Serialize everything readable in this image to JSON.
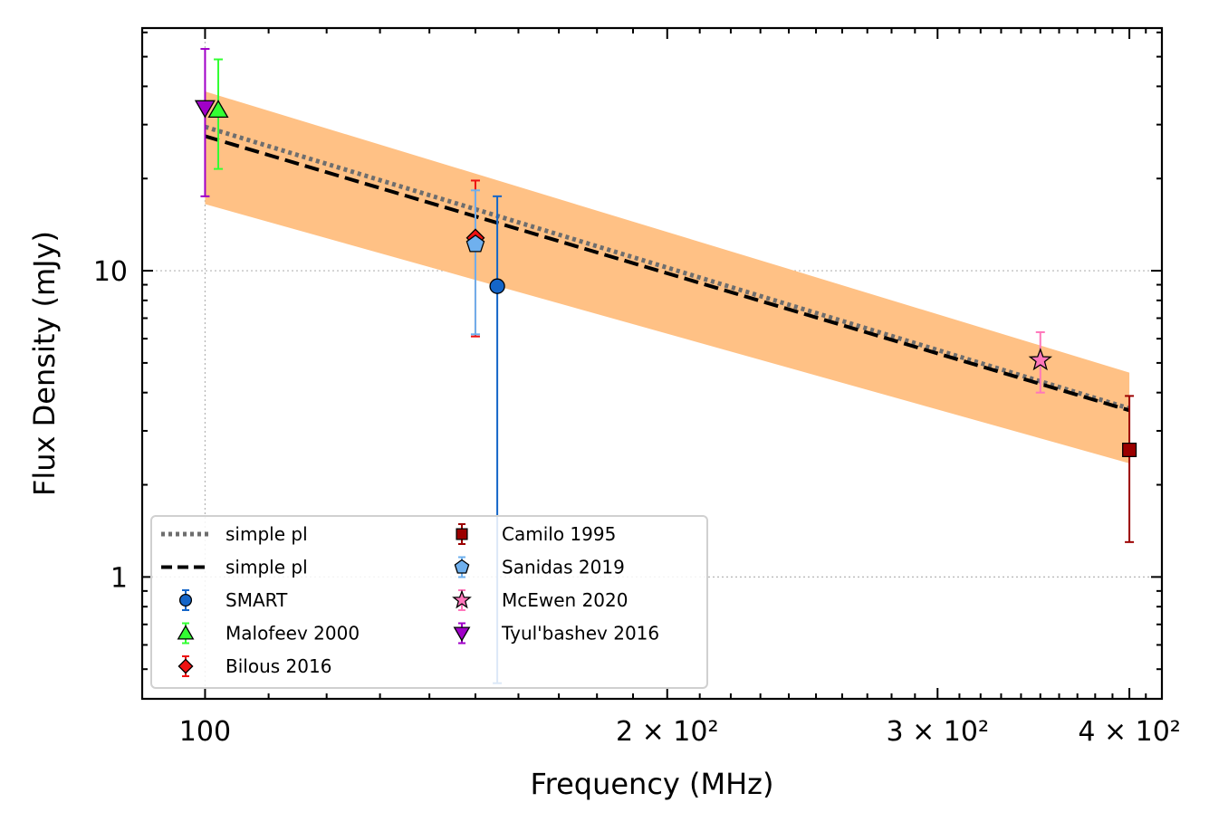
{
  "chart_data": {
    "type": "scatter",
    "xlabel": "Frequency (MHz)",
    "ylabel": "Flux Density (mJy)",
    "x_scale": "log",
    "y_scale": "log",
    "xlim": [
      91,
      420
    ],
    "ylim": [
      0.4,
      62
    ],
    "grid": true,
    "legend_position": "lower-left",
    "x_ticks": [
      {
        "value": 100,
        "label": "100"
      },
      {
        "value": 200,
        "label": "2 × 10²"
      },
      {
        "value": 300,
        "label": "3 × 10²"
      },
      {
        "value": 400,
        "label": "4 × 10²"
      }
    ],
    "y_ticks": [
      {
        "value": 1,
        "label": "1"
      },
      {
        "value": 10,
        "label": "10"
      }
    ],
    "fits": [
      {
        "name": "simple pl",
        "style": "dotted",
        "color": "#6e6e6e",
        "points": [
          [
            100,
            29.5
          ],
          [
            400,
            3.55
          ]
        ]
      },
      {
        "name": "simple pl",
        "style": "dashed",
        "color": "#000000",
        "points": [
          [
            100,
            27.5
          ],
          [
            400,
            3.5
          ]
        ]
      }
    ],
    "uncertainty_band": {
      "color": "#ffc185",
      "x": [
        100,
        400
      ],
      "upper": [
        38.5,
        4.65
      ],
      "lower": [
        16.5,
        2.35
      ]
    },
    "series": [
      {
        "name": "SMART",
        "marker": "circle",
        "color": "#1465c8",
        "errcolor": "#1465c8",
        "points": [
          {
            "x": 155,
            "y": 8.9,
            "ylo": 0.45,
            "yhi": 17.5
          }
        ]
      },
      {
        "name": "Malofeev 2000",
        "marker": "triangle-up",
        "color": "#33ff33",
        "errcolor": "#33ff33",
        "points": [
          {
            "x": 102,
            "y": 33.5,
            "ylo": 21.5,
            "yhi": 49
          }
        ]
      },
      {
        "name": "Bilous 2016",
        "marker": "diamond",
        "color": "#ee1111",
        "errcolor": "#ee1111",
        "points": [
          {
            "x": 150,
            "y": 12.8,
            "ylo": 6.1,
            "yhi": 19.7
          }
        ]
      },
      {
        "name": "Camilo 1995",
        "marker": "square",
        "color": "#9b0000",
        "errcolor": "#9b0000",
        "points": [
          {
            "x": 400,
            "y": 2.6,
            "ylo": 1.3,
            "yhi": 3.9
          }
        ]
      },
      {
        "name": "Sanidas 2019",
        "marker": "pentagon",
        "color": "#6fb0ee",
        "errcolor": "#6fb0ee",
        "points": [
          {
            "x": 150,
            "y": 12.2,
            "ylo": 6.2,
            "yhi": 18.3
          }
        ]
      },
      {
        "name": "McEwen 2020",
        "marker": "star",
        "color": "#ff77bb",
        "errcolor": "#ff77bb",
        "points": [
          {
            "x": 350,
            "y": 5.1,
            "ylo": 4.0,
            "yhi": 6.3
          }
        ]
      },
      {
        "name": "Tyul'bashev 2016",
        "marker": "triangle-down",
        "color": "#a000c8",
        "errcolor": "#a000c8",
        "points": [
          {
            "x": 100,
            "y": 34,
            "ylo": 17.5,
            "yhi": 53
          }
        ]
      }
    ],
    "legend": {
      "columns": [
        [
          {
            "label": "simple pl",
            "ref": "fit-0"
          },
          {
            "label": "simple pl",
            "ref": "fit-1"
          },
          {
            "label": "SMART",
            "ref": "series-0"
          },
          {
            "label": "Malofeev 2000",
            "ref": "series-1"
          },
          {
            "label": "Bilous 2016",
            "ref": "series-2"
          }
        ],
        [
          {
            "label": "Camilo 1995",
            "ref": "series-3"
          },
          {
            "label": "Sanidas 2019",
            "ref": "series-4"
          },
          {
            "label": "McEwen 2020",
            "ref": "series-5"
          },
          {
            "label": "Tyul'bashev 2016",
            "ref": "series-6"
          }
        ]
      ]
    }
  }
}
